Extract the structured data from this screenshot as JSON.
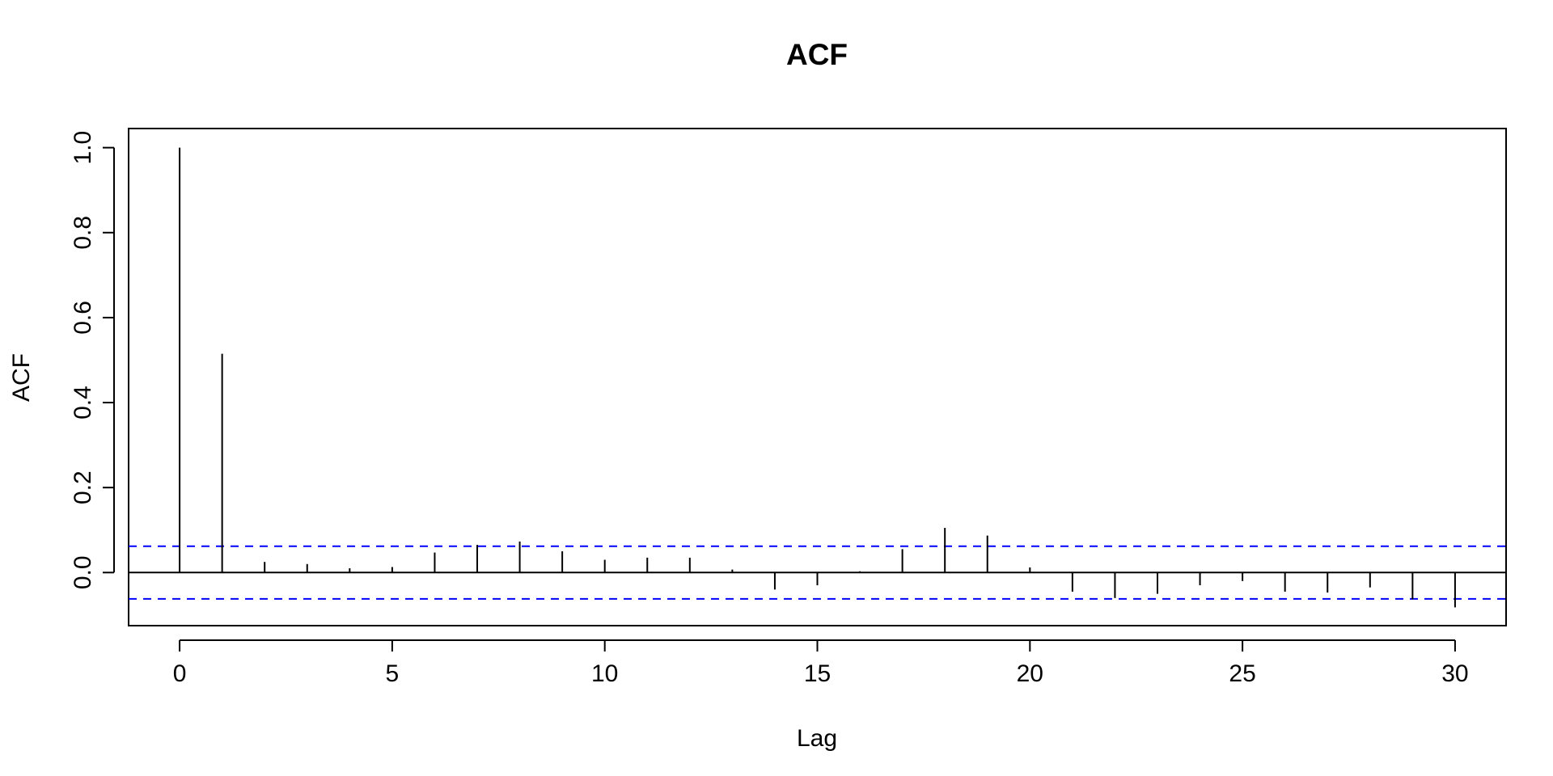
{
  "chart_data": {
    "type": "bar",
    "title": "ACF",
    "xlabel": "Lag",
    "ylabel": "ACF",
    "xlim": [
      -1.2,
      31.2
    ],
    "ylim": [
      -0.125,
      1.045
    ],
    "xticks": [
      0,
      5,
      10,
      15,
      20,
      25,
      30
    ],
    "xtick_labels": [
      "0",
      "5",
      "10",
      "15",
      "20",
      "25",
      "30"
    ],
    "yticks": [
      0.0,
      0.2,
      0.4,
      0.6,
      0.8,
      1.0
    ],
    "ytick_labels": [
      "0.0",
      "0.2",
      "0.4",
      "0.6",
      "0.8",
      "1.0"
    ],
    "grid": false,
    "lags": [
      0,
      1,
      2,
      3,
      4,
      5,
      6,
      7,
      8,
      9,
      10,
      11,
      12,
      13,
      14,
      15,
      16,
      17,
      18,
      19,
      20,
      21,
      22,
      23,
      24,
      25,
      26,
      27,
      28,
      29,
      30
    ],
    "values": [
      1.0,
      0.515,
      0.025,
      0.02,
      0.01,
      0.013,
      0.047,
      0.065,
      0.073,
      0.05,
      0.03,
      0.035,
      0.035,
      0.007,
      -0.04,
      -0.03,
      0.003,
      0.055,
      0.105,
      0.087,
      0.012,
      -0.045,
      -0.06,
      -0.05,
      -0.03,
      -0.02,
      -0.045,
      -0.047,
      -0.035,
      -0.063,
      -0.082
    ],
    "confidence_bounds": [
      0.062,
      -0.062
    ],
    "colors": {
      "bars": "#000000",
      "confidence": "#0000ff",
      "axis": "#000000"
    }
  }
}
